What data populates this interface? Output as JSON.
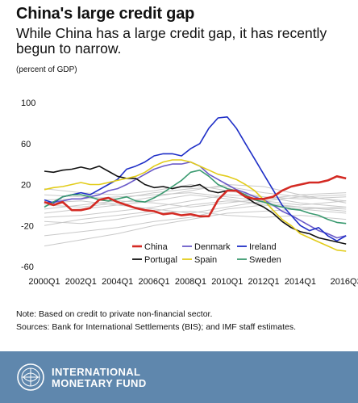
{
  "header": {
    "title": "China's large credit gap",
    "subtitle": "While China has a large credit gap, it has recently begun to narrow.",
    "unit": "(percent of GDP)"
  },
  "notes": {
    "note": "Note: Based on credit to private non-financial sector.",
    "sources": "Sources: Bank for International Settlements (BIS); and IMF staff estimates."
  },
  "footer": {
    "org_line1": "INTERNATIONAL",
    "org_line2": "MONETARY FUND",
    "logo": "imf-seal-icon"
  },
  "colors": {
    "China": "#d42a23",
    "Denmark": "#6b5bc9",
    "Ireland": "#1f2fc7",
    "Portugal": "#111111",
    "Spain": "#e2cc1a",
    "Sweden": "#3b9a70",
    "others": "#c9c9c9",
    "footer": "#5f87ad"
  },
  "chart_data": {
    "type": "line",
    "ylim": [
      -60,
      100
    ],
    "yticks": [
      -60,
      -20,
      20,
      60,
      100
    ],
    "xlim": [
      2000,
      2016.625
    ],
    "xticks": [
      {
        "x": 2000,
        "label": "2000Q1"
      },
      {
        "x": 2002,
        "label": "2002Q1"
      },
      {
        "x": 2004,
        "label": "2004Q1"
      },
      {
        "x": 2006,
        "label": "2006Q1"
      },
      {
        "x": 2008,
        "label": "2008Q1"
      },
      {
        "x": 2010,
        "label": "2010Q1"
      },
      {
        "x": 2012,
        "label": "2012Q1"
      },
      {
        "x": 2014,
        "label": "2014Q1"
      },
      {
        "x": 2016.5,
        "label": "2016Q3"
      }
    ],
    "grid": false,
    "legend_position": "bottom-center",
    "legend_order": [
      "China",
      "Denmark",
      "Ireland",
      "Portugal",
      "Spain",
      "Sweden"
    ],
    "series": [
      {
        "name": "China",
        "highlight": true,
        "x": [
          2000,
          2000.5,
          2001,
          2001.5,
          2002,
          2002.5,
          2003,
          2003.5,
          2004,
          2004.5,
          2005,
          2005.5,
          2006,
          2006.5,
          2007,
          2007.5,
          2008,
          2008.5,
          2009,
          2009.5,
          2010,
          2010.5,
          2011,
          2011.5,
          2012,
          2012.5,
          2013,
          2013.5,
          2014,
          2014.5,
          2015,
          2015.5,
          2016,
          2016.5
        ],
        "y": [
          3,
          0,
          3,
          -5,
          -5,
          -3,
          5,
          7,
          3,
          0,
          -3,
          -5,
          -6,
          -9,
          -8,
          -10,
          -9,
          -11,
          -11,
          5,
          14,
          14,
          8,
          6,
          6,
          8,
          14,
          18,
          20,
          22,
          22,
          24,
          28,
          26
        ]
      },
      {
        "name": "Denmark",
        "x": [
          2000,
          2000.5,
          2001,
          2001.5,
          2002,
          2002.5,
          2003,
          2003.5,
          2004,
          2004.5,
          2005,
          2005.5,
          2006,
          2006.5,
          2007,
          2007.5,
          2008,
          2008.5,
          2009,
          2009.5,
          2010,
          2010.5,
          2011,
          2011.5,
          2012,
          2012.5,
          2013,
          2013.5,
          2014,
          2014.5,
          2015,
          2015.5,
          2016,
          2016.5
        ],
        "y": [
          2,
          3,
          4,
          6,
          6,
          8,
          10,
          14,
          16,
          20,
          25,
          30,
          35,
          38,
          40,
          40,
          42,
          38,
          30,
          25,
          20,
          15,
          12,
          8,
          5,
          0,
          -6,
          -10,
          -15,
          -20,
          -25,
          -28,
          -32,
          -30
        ]
      },
      {
        "name": "Ireland",
        "x": [
          2000,
          2000.5,
          2001,
          2001.5,
          2002,
          2002.5,
          2003,
          2003.5,
          2004,
          2004.5,
          2005,
          2005.5,
          2006,
          2006.5,
          2007,
          2007.5,
          2008,
          2008.5,
          2009,
          2009.5,
          2010,
          2010.5,
          2011,
          2011.5,
          2012,
          2012.5,
          2013,
          2013.5,
          2014,
          2014.5,
          2015,
          2015.5,
          2016,
          2016.5
        ],
        "y": [
          5,
          2,
          8,
          10,
          12,
          10,
          15,
          20,
          25,
          35,
          38,
          42,
          48,
          50,
          50,
          48,
          55,
          60,
          75,
          85,
          86,
          75,
          60,
          45,
          30,
          15,
          0,
          -10,
          -20,
          -25,
          -22,
          -30,
          -35,
          -30
        ]
      },
      {
        "name": "Portugal",
        "x": [
          2000,
          2000.5,
          2001,
          2001.5,
          2002,
          2002.5,
          2003,
          2003.5,
          2004,
          2004.5,
          2005,
          2005.5,
          2006,
          2006.5,
          2007,
          2007.5,
          2008,
          2008.5,
          2009,
          2009.5,
          2010,
          2010.5,
          2011,
          2011.5,
          2012,
          2012.5,
          2013,
          2013.5,
          2014,
          2014.5,
          2015,
          2015.5,
          2016,
          2016.5
        ],
        "y": [
          33,
          32,
          34,
          35,
          37,
          35,
          38,
          33,
          28,
          26,
          26,
          20,
          17,
          18,
          16,
          18,
          18,
          20,
          14,
          12,
          14,
          14,
          8,
          2,
          -2,
          -8,
          -16,
          -22,
          -26,
          -28,
          -32,
          -34,
          -36,
          -38
        ]
      },
      {
        "name": "Spain",
        "x": [
          2000,
          2000.5,
          2001,
          2001.5,
          2002,
          2002.5,
          2003,
          2003.5,
          2004,
          2004.5,
          2005,
          2005.5,
          2006,
          2006.5,
          2007,
          2007.5,
          2008,
          2008.5,
          2009,
          2009.5,
          2010,
          2010.5,
          2011,
          2011.5,
          2012,
          2012.5,
          2013,
          2013.5,
          2014,
          2014.5,
          2015,
          2015.5,
          2016,
          2016.5
        ],
        "y": [
          15,
          17,
          18,
          20,
          22,
          20,
          20,
          22,
          24,
          26,
          28,
          32,
          38,
          42,
          44,
          44,
          42,
          38,
          34,
          30,
          28,
          25,
          20,
          14,
          5,
          -5,
          -14,
          -20,
          -28,
          -32,
          -36,
          -40,
          -44,
          -45
        ]
      },
      {
        "name": "Sweden",
        "x": [
          2000,
          2000.5,
          2001,
          2001.5,
          2002,
          2002.5,
          2003,
          2003.5,
          2004,
          2004.5,
          2005,
          2005.5,
          2006,
          2006.5,
          2007,
          2007.5,
          2008,
          2008.5,
          2009,
          2009.5,
          2010,
          2010.5,
          2011,
          2011.5,
          2012,
          2012.5,
          2013,
          2013.5,
          2014,
          2014.5,
          2015,
          2015.5,
          2016,
          2016.5
        ],
        "y": [
          -2,
          3,
          8,
          10,
          10,
          8,
          5,
          4,
          6,
          8,
          4,
          3,
          7,
          12,
          18,
          24,
          32,
          34,
          28,
          20,
          16,
          14,
          10,
          5,
          3,
          0,
          -2,
          -4,
          -5,
          -8,
          -10,
          -14,
          -17,
          -18
        ]
      },
      {
        "name": "",
        "background": true,
        "x": [
          2000,
          2002,
          2004,
          2006,
          2008,
          2010,
          2012,
          2014,
          2016.5
        ],
        "y": [
          -8,
          -4,
          0,
          4,
          10,
          6,
          0,
          -4,
          -8
        ]
      },
      {
        "name": "",
        "background": true,
        "x": [
          2000,
          2002,
          2004,
          2006,
          2008,
          2010,
          2012,
          2014,
          2016.5
        ],
        "y": [
          -20,
          -14,
          -10,
          -6,
          0,
          4,
          2,
          -2,
          -6
        ]
      },
      {
        "name": "",
        "background": true,
        "x": [
          2000,
          2002,
          2004,
          2006,
          2008,
          2010,
          2012,
          2014,
          2016.5
        ],
        "y": [
          10,
          8,
          6,
          12,
          16,
          18,
          12,
          8,
          4
        ]
      },
      {
        "name": "",
        "background": true,
        "x": [
          2000,
          2002,
          2004,
          2006,
          2008,
          2010,
          2012,
          2014,
          2016.5
        ],
        "y": [
          -30,
          -26,
          -22,
          -16,
          -12,
          -4,
          0,
          -2,
          -4
        ]
      },
      {
        "name": "",
        "background": true,
        "x": [
          2000,
          2002,
          2004,
          2006,
          2008,
          2010,
          2012,
          2014,
          2016.5
        ],
        "y": [
          0,
          -2,
          2,
          8,
          14,
          20,
          18,
          10,
          2
        ]
      },
      {
        "name": "",
        "background": true,
        "x": [
          2000,
          2002,
          2004,
          2006,
          2008,
          2010,
          2012,
          2014,
          2016.5
        ],
        "y": [
          -12,
          -10,
          -6,
          -2,
          4,
          10,
          8,
          2,
          -2
        ]
      },
      {
        "name": "",
        "background": true,
        "x": [
          2000,
          2002,
          2004,
          2006,
          2008,
          2010,
          2012,
          2014,
          2016.5
        ],
        "y": [
          5,
          6,
          8,
          10,
          12,
          8,
          4,
          0,
          4
        ]
      },
      {
        "name": "",
        "background": true,
        "x": [
          2000,
          2002,
          2004,
          2006,
          2008,
          2010,
          2012,
          2014,
          2016.5
        ],
        "y": [
          -40,
          -34,
          -28,
          -20,
          -14,
          -8,
          -6,
          -4,
          -2
        ]
      },
      {
        "name": "",
        "background": true,
        "x": [
          2000,
          2002,
          2004,
          2006,
          2008,
          2010,
          2012,
          2014,
          2016.5
        ],
        "y": [
          -4,
          0,
          4,
          2,
          -2,
          2,
          6,
          10,
          12
        ]
      },
      {
        "name": "",
        "background": true,
        "x": [
          2000,
          2002,
          2004,
          2006,
          2008,
          2010,
          2012,
          2014,
          2016.5
        ],
        "y": [
          16,
          12,
          10,
          14,
          20,
          14,
          8,
          6,
          8
        ]
      },
      {
        "name": "",
        "background": true,
        "x": [
          2000,
          2002,
          2004,
          2006,
          2008,
          2010,
          2012,
          2014,
          2016.5
        ],
        "y": [
          -16,
          -18,
          -14,
          -8,
          -6,
          -10,
          -12,
          -10,
          -14
        ]
      },
      {
        "name": "",
        "background": true,
        "x": [
          2000,
          2002,
          2004,
          2006,
          2008,
          2010,
          2012,
          2014,
          2016.5
        ],
        "y": [
          2,
          4,
          0,
          -4,
          -8,
          -2,
          4,
          8,
          10
        ]
      }
    ]
  }
}
